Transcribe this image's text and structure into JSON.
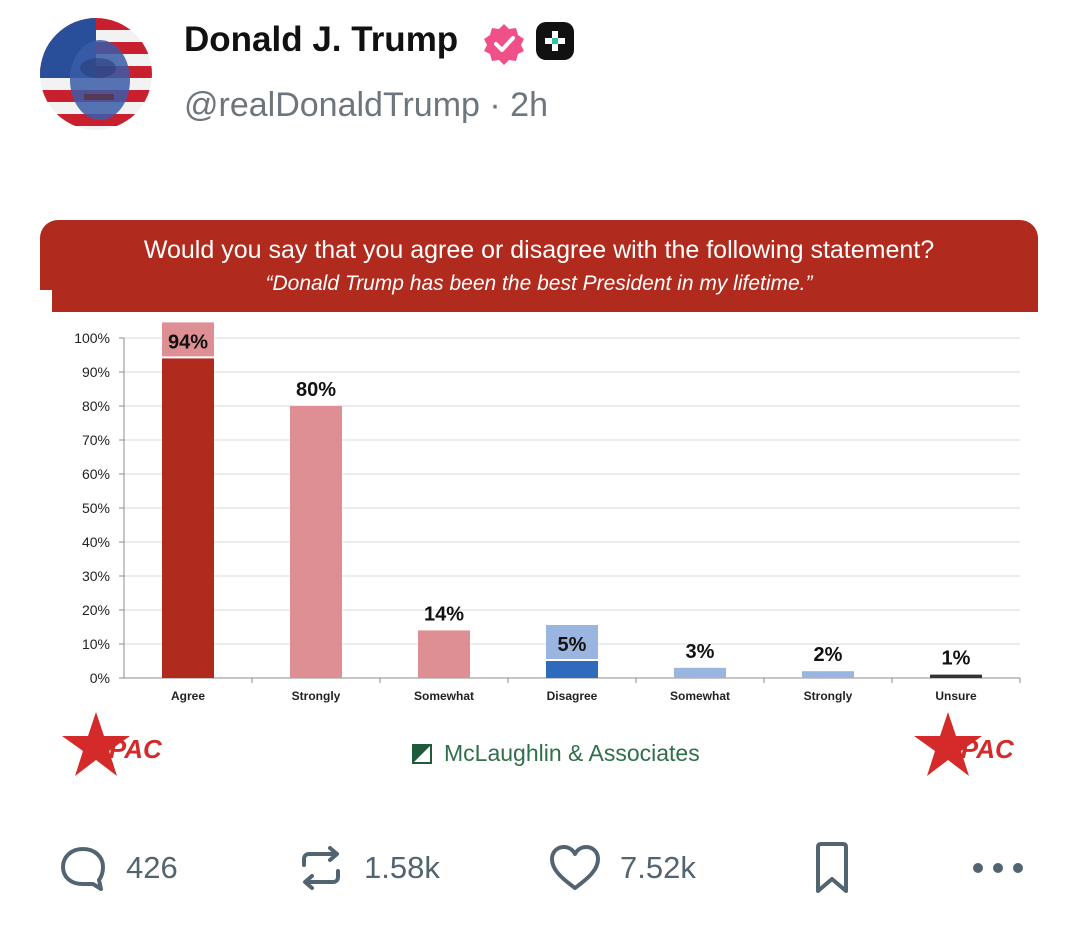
{
  "post": {
    "author_name": "Donald J. Trump",
    "handle": "@realDonaldTrump",
    "separator": "·",
    "time": "2h"
  },
  "colors": {
    "header_red": "#b12a1e",
    "bar_dark_red": "#b12a1e",
    "bar_light_red": "#de8f93",
    "bar_dark_blue": "#2e6bbd",
    "bar_light_blue": "#9ab6e0",
    "bar_black": "#333333",
    "verified_pink": "#f0508a"
  },
  "chart_data": {
    "type": "bar",
    "title": "Would you say that you agree or disagree with the following statement?",
    "subtitle": "“Donald Trump has been the best President in my lifetime.”",
    "categories": [
      "Agree",
      "Strongly",
      "Somewhat",
      "Disagree",
      "Somewhat",
      "Strongly",
      "Unsure"
    ],
    "values": [
      94,
      80,
      14,
      5,
      3,
      2,
      1
    ],
    "labels": [
      "94%",
      "80%",
      "14%",
      "5%",
      "3%",
      "2%",
      "1%"
    ],
    "bar_colors": [
      "#b12a1e",
      "#de8f93",
      "#de8f93",
      "#2e6bbd",
      "#9ab6e0",
      "#9ab6e0",
      "#333333"
    ],
    "label_boxes": [
      "#de8f93",
      "",
      "",
      "#9ab6e0",
      "",
      "",
      ""
    ],
    "yticks": [
      "0%",
      "10%",
      "20%",
      "30%",
      "40%",
      "50%",
      "60%",
      "70%",
      "80%",
      "90%",
      "100%"
    ],
    "ylim": [
      0,
      100
    ],
    "grid": true
  },
  "footer": {
    "left_logo": "CPAC",
    "sponsor": "McLaughlin & Associates",
    "right_logo": "CPAC"
  },
  "actions": {
    "replies": "426",
    "reposts": "1.58k",
    "likes": "7.52k"
  }
}
